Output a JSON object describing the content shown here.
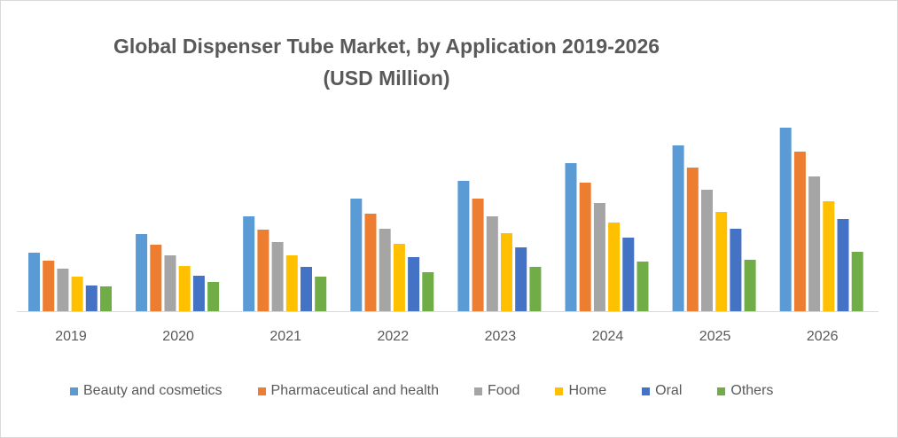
{
  "chart_data": {
    "type": "bar",
    "title": "Global Dispenser Tube Market, by Application 2019-2026",
    "subtitle": "(USD Million)",
    "xlabel": "",
    "ylabel": "",
    "categories": [
      "2019",
      "2020",
      "2021",
      "2022",
      "2023",
      "2024",
      "2025",
      "2026"
    ],
    "ylim": [
      0,
      220
    ],
    "grid": false,
    "legend_position": "bottom",
    "series": [
      {
        "name": "Beauty and cosmetics",
        "color": "#5B9BD5",
        "values": [
          66,
          87,
          107,
          127,
          147,
          167,
          187,
          207
        ]
      },
      {
        "name": "Pharmaceutical and health",
        "color": "#ED7D31",
        "values": [
          57,
          75,
          92,
          110,
          127,
          145,
          162,
          180
        ]
      },
      {
        "name": "Food",
        "color": "#A5A5A5",
        "values": [
          48,
          63,
          78,
          93,
          107,
          122,
          137,
          152
        ]
      },
      {
        "name": "Home",
        "color": "#FFC000",
        "values": [
          39,
          51,
          63,
          76,
          88,
          100,
          112,
          124
        ]
      },
      {
        "name": "Oral",
        "color": "#4472C4",
        "values": [
          29,
          40,
          50,
          61,
          72,
          83,
          93,
          104
        ]
      },
      {
        "name": "Others",
        "color": "#70AD47",
        "values": [
          28,
          33,
          39,
          44,
          50,
          56,
          58,
          67
        ]
      }
    ]
  }
}
